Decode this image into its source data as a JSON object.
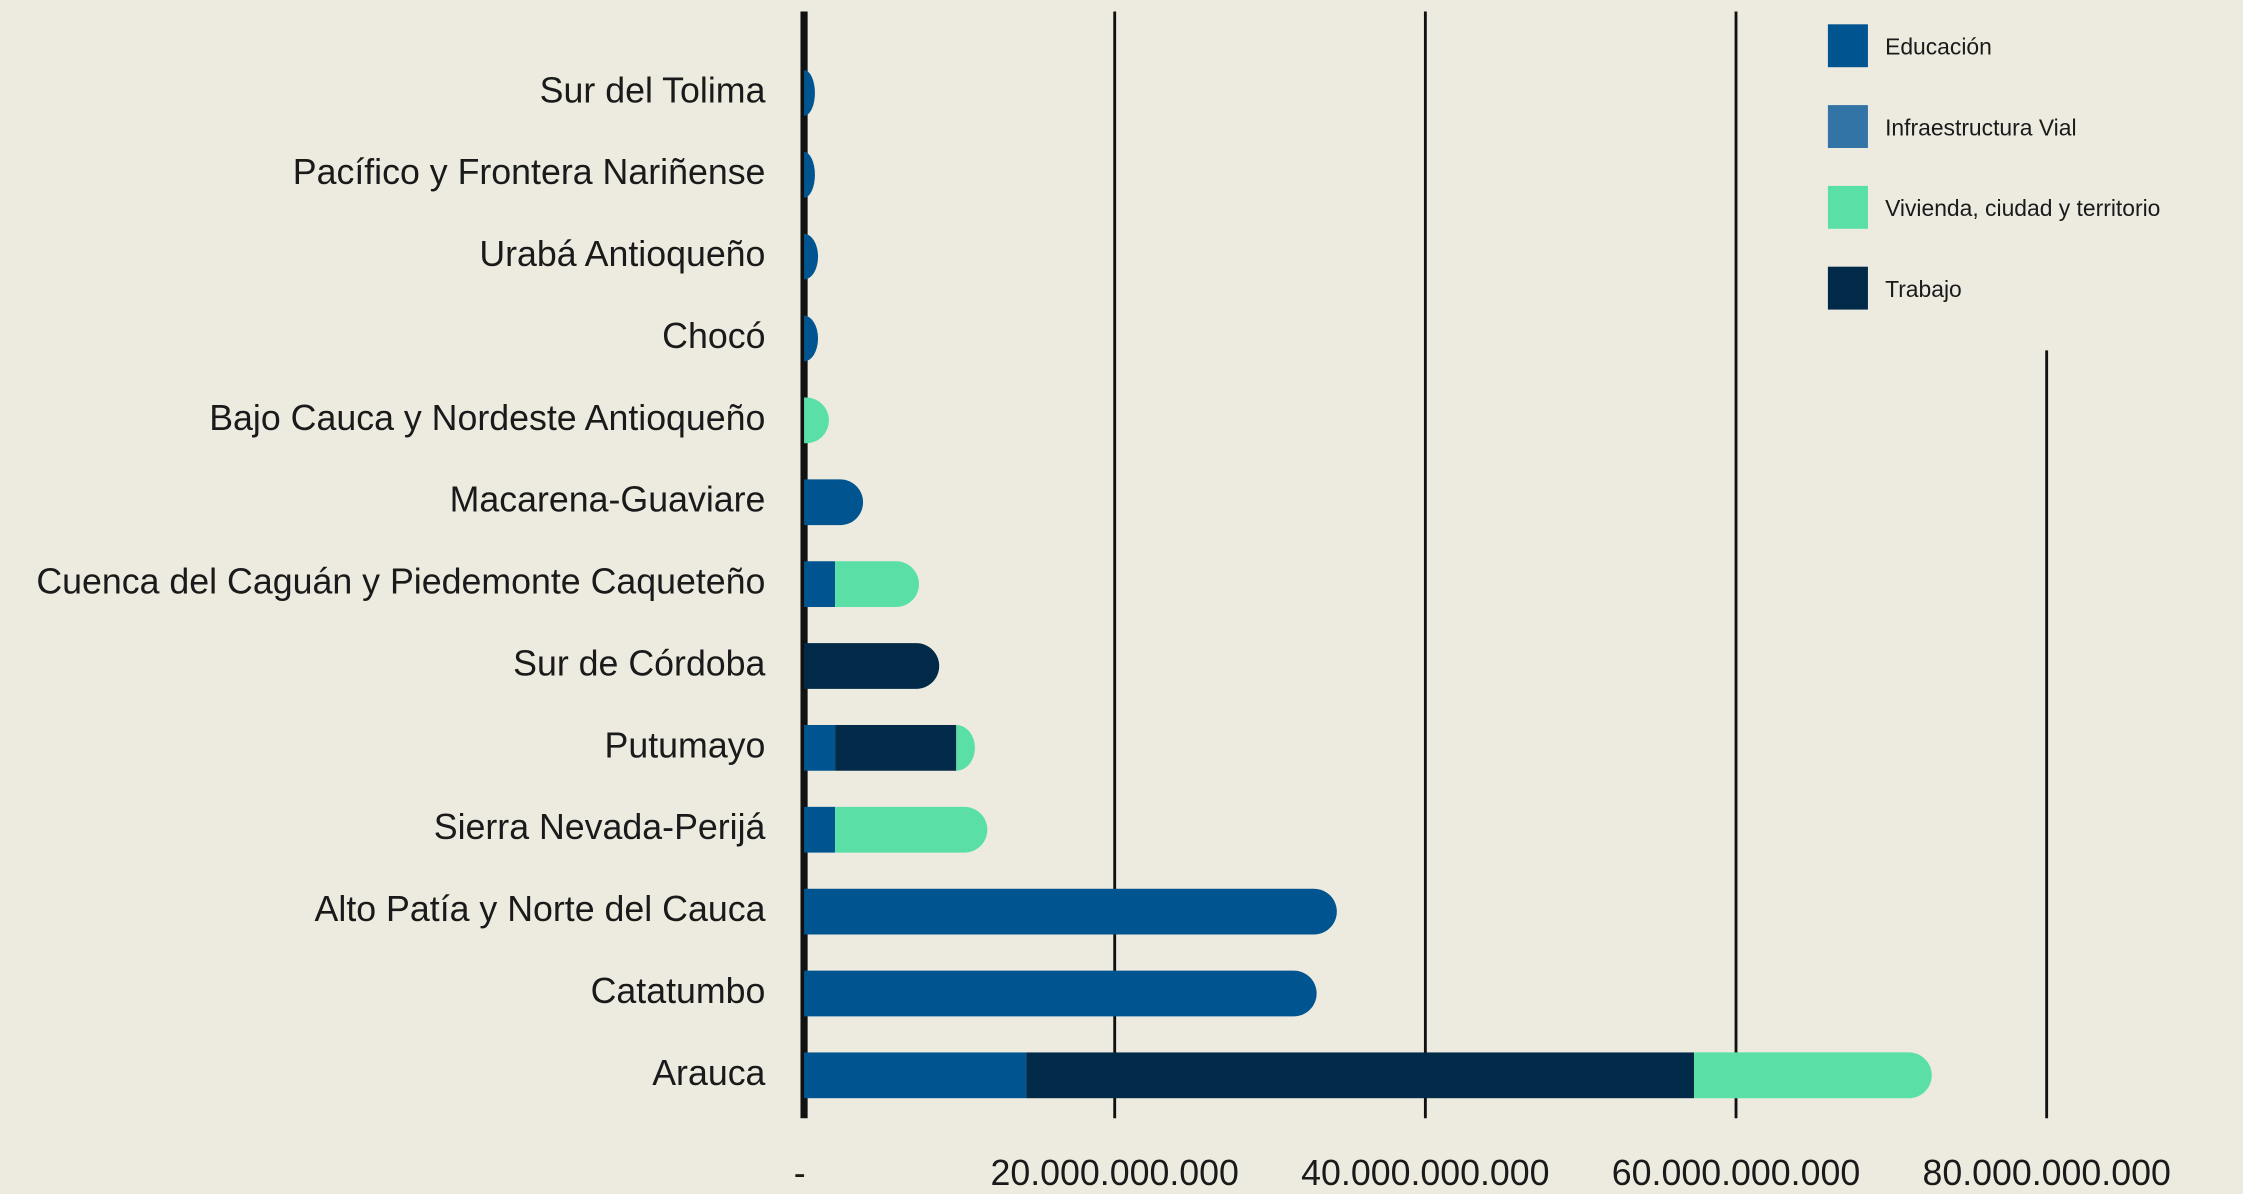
{
  "chart_data": {
    "type": "stacked-horizontal-bar",
    "categories": [
      "Sur del Tolima",
      "Pacífico y Frontera Nariñense",
      "Urabá Antioqueño",
      "Chocó",
      "Bajo Cauca y Nordeste Antioqueño",
      "Macarena-Guaviare",
      "Cuenca del Caguán y Piedemonte Caqueteño",
      "Sur de Córdoba",
      "Putumayo",
      "Sierra Nevada-Perijá",
      "Alto Patía y Norte del Cauca",
      "Catatumbo",
      "Arauca"
    ],
    "series": [
      {
        "name": "Educación",
        "color": "#00548f",
        "values": [
          700000000,
          700000000,
          900000000,
          900000000,
          0,
          3800000000,
          2000000000,
          0,
          2000000000,
          2000000000,
          34300000000,
          33000000000,
          14300000000
        ]
      },
      {
        "name": "Infraestructura Vial",
        "color": "#3274a6",
        "values": [
          0,
          0,
          0,
          0,
          0,
          0,
          0,
          0,
          0,
          0,
          0,
          0,
          0
        ]
      },
      {
        "name": "Vivienda, ciudad y territorio",
        "color": "#5ae0a6",
        "values": [
          0,
          0,
          0,
          0,
          1600000000,
          0,
          5400000000,
          0,
          1200000000,
          9800000000,
          0,
          0,
          15300000000
        ]
      },
      {
        "name": "Trabajo",
        "color": "#002a47",
        "values": [
          0,
          0,
          0,
          0,
          0,
          0,
          0,
          8700000000,
          7800000000,
          0,
          0,
          0,
          43000000000
        ]
      }
    ],
    "stack_order": [
      0,
      1,
      3,
      2
    ],
    "xlim": [
      0,
      80000000000
    ],
    "xticks": [
      {
        "value": 0,
        "label": "-"
      },
      {
        "value": 20000000000,
        "label": "20.000.000.000"
      },
      {
        "value": 40000000000,
        "label": "40.000.000.000"
      },
      {
        "value": 60000000000,
        "label": "60.000.000.000"
      },
      {
        "value": 80000000000,
        "label": "80.000.000.000"
      }
    ],
    "grid": true,
    "legend": "top-right"
  }
}
